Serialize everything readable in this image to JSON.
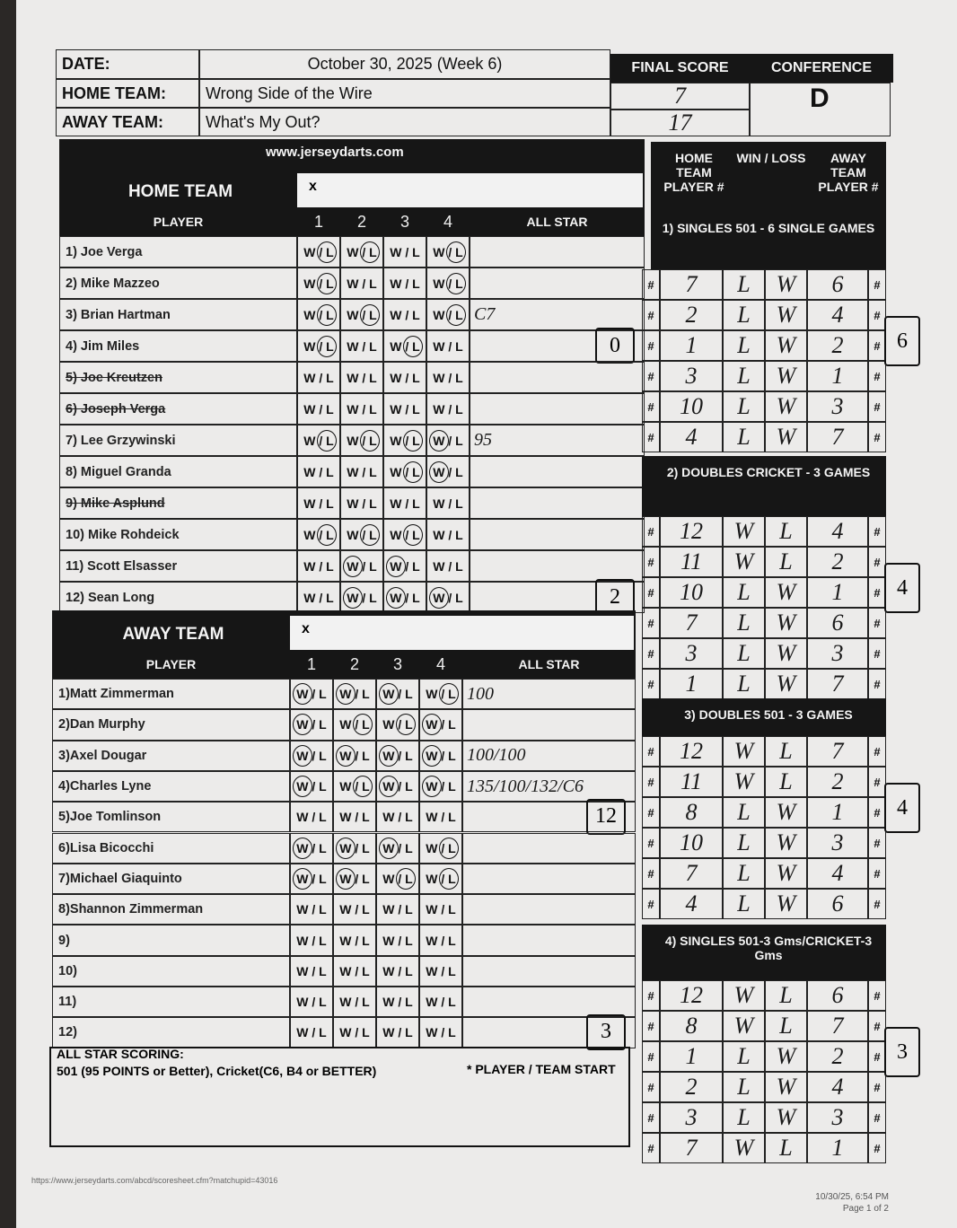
{
  "header": {
    "date_label": "DATE:",
    "date": "October 30, 2025 (Week 6)",
    "home_label": "HOME TEAM:",
    "home": "Wrong Side of the Wire",
    "away_label": "AWAY TEAM:",
    "away": "What's My Out?",
    "final_score_label": "FINAL SCORE",
    "home_score": "7",
    "away_score": "17",
    "conference_label": "CONFERENCE",
    "conference": "D"
  },
  "marks": {
    "wl": "W / L",
    "hash": "#",
    "sign": "x",
    "games": [
      "1",
      "2",
      "3",
      "4"
    ],
    "player": "PLAYER",
    "all_star": "ALL STAR"
  },
  "home": {
    "site": "www.jerseydarts.com",
    "title": "HOME TEAM",
    "players": [
      {
        "name": "1) Joe Verga",
        "results": [
          "L",
          "L",
          null,
          "L"
        ]
      },
      {
        "name": "2) Mike Mazzeo",
        "results": [
          "L",
          null,
          null,
          "L"
        ]
      },
      {
        "name": "3) Brian Hartman",
        "results": [
          "L",
          "L",
          null,
          "L"
        ],
        "all_star": "C7"
      },
      {
        "name": "4) Jim Miles",
        "results": [
          "L",
          null,
          "L",
          null
        ],
        "box": "0"
      },
      {
        "name": "5) Joe Kreutzen",
        "results": [
          null,
          null,
          null,
          null
        ],
        "struck": true
      },
      {
        "name": "6) Joseph Verga",
        "results": [
          null,
          null,
          null,
          null
        ],
        "struck": true
      },
      {
        "name": "7) Lee Grzywinski",
        "results": [
          "L",
          "L",
          "L",
          "W"
        ],
        "all_star": "95"
      },
      {
        "name": "8) Miguel Granda",
        "results": [
          null,
          null,
          "L",
          "W"
        ]
      },
      {
        "name": "9) Mike Asplund",
        "results": [
          null,
          null,
          null,
          null
        ],
        "struck": true
      },
      {
        "name": "10) Mike Rohdeick",
        "results": [
          "L",
          "L",
          "L",
          null
        ]
      },
      {
        "name": "11) Scott Elsasser",
        "results": [
          null,
          "W",
          "W",
          null
        ]
      },
      {
        "name": "12) Sean Long",
        "results": [
          null,
          "W",
          "W",
          "W"
        ],
        "box": "2"
      }
    ]
  },
  "away": {
    "title": "AWAY TEAM",
    "players": [
      {
        "name": "1)Matt Zimmerman",
        "results": [
          "W",
          "W",
          "W",
          "L"
        ],
        "all_star": "100"
      },
      {
        "name": "2)Dan Murphy",
        "results": [
          "W",
          "L",
          "L",
          "W"
        ]
      },
      {
        "name": "3)Axel Dougar",
        "results": [
          "W",
          "W",
          "W",
          "W"
        ],
        "all_star": "100/100"
      },
      {
        "name": "4)Charles Lyne",
        "results": [
          "W",
          "L",
          "W",
          "W"
        ],
        "all_star": "135/100/132/C6"
      },
      {
        "name": "5)Joe Tomlinson",
        "results": [
          null,
          null,
          null,
          null
        ],
        "box": "12"
      },
      {
        "name": "6)Lisa Bicocchi",
        "results": [
          "W",
          "W",
          "W",
          "L"
        ]
      },
      {
        "name": "7)Michael Giaquinto",
        "results": [
          "W",
          "W",
          "L",
          "L"
        ]
      },
      {
        "name": "8)Shannon Zimmerman",
        "results": [
          null,
          null,
          null,
          null
        ]
      },
      {
        "name": "9)",
        "results": [
          null,
          null,
          null,
          null
        ]
      },
      {
        "name": "10)",
        "results": [
          null,
          null,
          null,
          null
        ]
      },
      {
        "name": "11)",
        "results": [
          null,
          null,
          null,
          null
        ]
      },
      {
        "name": "12)",
        "results": [
          null,
          null,
          null,
          null
        ],
        "box": "3"
      }
    ]
  },
  "footer": {
    "scoring_title": "ALL STAR SCORING:",
    "scoring_text": "501 (95 POINTS or Better), Cricket(C6, B4 or BETTER)",
    "start_note": "* PLAYER / TEAM START",
    "url": "https://www.jerseydarts.com/abcd/scoresheet.cfm?matchupid=43016",
    "printed": "10/30/25, 6:54 PM",
    "page": "Page 1 of 2"
  },
  "matches": {
    "home_header": "HOME TEAM PLAYER #",
    "wl_header": "WIN / LOSS",
    "away_header": "AWAY TEAM PLAYER #",
    "sections": [
      {
        "title": "1) SINGLES 501 - 6 SINGLE GAMES",
        "total": "6",
        "rows": [
          [
            "7",
            "L",
            "W",
            "6"
          ],
          [
            "2",
            "L",
            "W",
            "4"
          ],
          [
            "1",
            "L",
            "W",
            "2"
          ],
          [
            "3",
            "L",
            "W",
            "1"
          ],
          [
            "10",
            "L",
            "W",
            "3"
          ],
          [
            "4",
            "L",
            "W",
            "7"
          ]
        ]
      },
      {
        "title": "2) DOUBLES CRICKET - 3 GAMES",
        "total": "4",
        "rows": [
          [
            "12",
            "W",
            "L",
            "4"
          ],
          [
            "11",
            "W",
            "L",
            "2"
          ],
          [
            "10",
            "L",
            "W",
            "1"
          ],
          [
            "7",
            "L",
            "W",
            "6"
          ],
          [
            "3",
            "L",
            "W",
            "3"
          ],
          [
            "1",
            "L",
            "W",
            "7"
          ]
        ]
      },
      {
        "title": "3) DOUBLES 501 - 3 GAMES",
        "total": "4",
        "rows": [
          [
            "12",
            "W",
            "L",
            "7"
          ],
          [
            "11",
            "W",
            "L",
            "2"
          ],
          [
            "8",
            "L",
            "W",
            "1"
          ],
          [
            "10",
            "L",
            "W",
            "3"
          ],
          [
            "7",
            "L",
            "W",
            "4"
          ],
          [
            "4",
            "L",
            "W",
            "6"
          ]
        ]
      },
      {
        "title": "4) SINGLES 501-3 Gms/CRICKET-3 Gms",
        "total": "3",
        "rows": [
          [
            "12",
            "W",
            "L",
            "6"
          ],
          [
            "8",
            "W",
            "L",
            "7"
          ],
          [
            "1",
            "L",
            "W",
            "2"
          ],
          [
            "2",
            "L",
            "W",
            "4"
          ],
          [
            "3",
            "L",
            "W",
            "3"
          ],
          [
            "7",
            "W",
            "L",
            "1"
          ]
        ]
      }
    ]
  }
}
